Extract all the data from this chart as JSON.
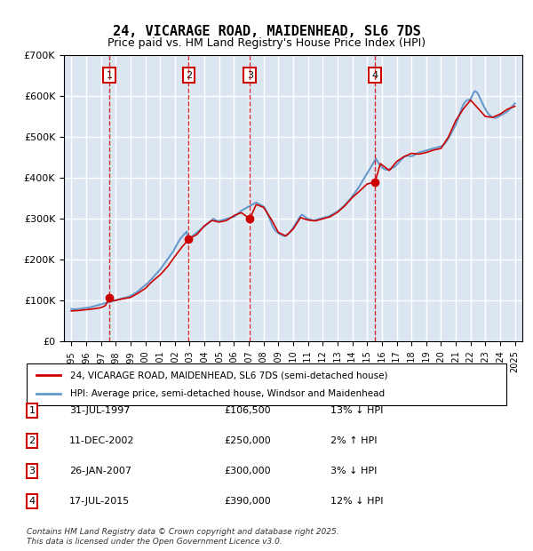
{
  "title": "24, VICARAGE ROAD, MAIDENHEAD, SL6 7DS",
  "subtitle": "Price paid vs. HM Land Registry's House Price Index (HPI)",
  "legend_label_red": "24, VICARAGE ROAD, MAIDENHEAD, SL6 7DS (semi-detached house)",
  "legend_label_blue": "HPI: Average price, semi-detached house, Windsor and Maidenhead",
  "footer": "Contains HM Land Registry data © Crown copyright and database right 2025.\nThis data is licensed under the Open Government Licence v3.0.",
  "transactions": [
    {
      "num": 1,
      "date": "31-JUL-1997",
      "price": "£106,500",
      "hpi": "13% ↓ HPI",
      "year": 1997.58
    },
    {
      "num": 2,
      "date": "11-DEC-2002",
      "price": "£250,000",
      "hpi": "2% ↑ HPI",
      "year": 2002.94
    },
    {
      "num": 3,
      "date": "26-JAN-2007",
      "price": "£300,000",
      "hpi": "3% ↓ HPI",
      "year": 2007.07
    },
    {
      "num": 4,
      "date": "17-JUL-2015",
      "price": "£390,000",
      "hpi": "12% ↓ HPI",
      "year": 2015.54
    }
  ],
  "transaction_prices": [
    106500,
    250000,
    300000,
    390000
  ],
  "ylim": [
    0,
    700000
  ],
  "xlim_start": 1994.5,
  "xlim_end": 2025.5,
  "background_color": "#dce6f1",
  "plot_bg_color": "#dce6f1",
  "red_color": "#cc0000",
  "blue_color": "#6699cc",
  "grid_color": "#ffffff",
  "hpi_data": {
    "years": [
      1995.0,
      1995.1,
      1995.2,
      1995.3,
      1995.4,
      1995.5,
      1995.6,
      1995.7,
      1995.8,
      1995.9,
      1996.0,
      1996.1,
      1996.2,
      1996.3,
      1996.4,
      1996.5,
      1996.6,
      1996.7,
      1996.8,
      1996.9,
      1997.0,
      1997.1,
      1997.2,
      1997.3,
      1997.4,
      1997.5,
      1997.6,
      1997.7,
      1997.8,
      1997.9,
      1998.0,
      1998.1,
      1998.2,
      1998.3,
      1998.4,
      1998.5,
      1998.6,
      1998.7,
      1998.8,
      1998.9,
      1999.0,
      1999.1,
      1999.2,
      1999.3,
      1999.4,
      1999.5,
      1999.6,
      1999.7,
      1999.8,
      1999.9,
      2000.0,
      2000.1,
      2000.2,
      2000.3,
      2000.4,
      2000.5,
      2000.6,
      2000.7,
      2000.8,
      2000.9,
      2001.0,
      2001.1,
      2001.2,
      2001.3,
      2001.4,
      2001.5,
      2001.6,
      2001.7,
      2001.8,
      2001.9,
      2002.0,
      2002.1,
      2002.2,
      2002.3,
      2002.4,
      2002.5,
      2002.6,
      2002.7,
      2002.8,
      2002.9,
      2003.0,
      2003.1,
      2003.2,
      2003.3,
      2003.4,
      2003.5,
      2003.6,
      2003.7,
      2003.8,
      2003.9,
      2004.0,
      2004.1,
      2004.2,
      2004.3,
      2004.4,
      2004.5,
      2004.6,
      2004.7,
      2004.8,
      2004.9,
      2005.0,
      2005.1,
      2005.2,
      2005.3,
      2005.4,
      2005.5,
      2005.6,
      2005.7,
      2005.8,
      2005.9,
      2006.0,
      2006.1,
      2006.2,
      2006.3,
      2006.4,
      2006.5,
      2006.6,
      2006.7,
      2006.8,
      2006.9,
      2007.0,
      2007.1,
      2007.2,
      2007.3,
      2007.4,
      2007.5,
      2007.6,
      2007.7,
      2007.8,
      2007.9,
      2008.0,
      2008.1,
      2008.2,
      2008.3,
      2008.4,
      2008.5,
      2008.6,
      2008.7,
      2008.8,
      2008.9,
      2009.0,
      2009.1,
      2009.2,
      2009.3,
      2009.4,
      2009.5,
      2009.6,
      2009.7,
      2009.8,
      2009.9,
      2010.0,
      2010.1,
      2010.2,
      2010.3,
      2010.4,
      2010.5,
      2010.6,
      2010.7,
      2010.8,
      2010.9,
      2011.0,
      2011.1,
      2011.2,
      2011.3,
      2011.4,
      2011.5,
      2011.6,
      2011.7,
      2011.8,
      2011.9,
      2012.0,
      2012.1,
      2012.2,
      2012.3,
      2012.4,
      2012.5,
      2012.6,
      2012.7,
      2012.8,
      2012.9,
      2013.0,
      2013.1,
      2013.2,
      2013.3,
      2013.4,
      2013.5,
      2013.6,
      2013.7,
      2013.8,
      2013.9,
      2014.0,
      2014.1,
      2014.2,
      2014.3,
      2014.4,
      2014.5,
      2014.6,
      2014.7,
      2014.8,
      2014.9,
      2015.0,
      2015.1,
      2015.2,
      2015.3,
      2015.4,
      2015.5,
      2015.6,
      2015.7,
      2015.8,
      2015.9,
      2016.0,
      2016.1,
      2016.2,
      2016.3,
      2016.4,
      2016.5,
      2016.6,
      2016.7,
      2016.8,
      2016.9,
      2017.0,
      2017.1,
      2017.2,
      2017.3,
      2017.4,
      2017.5,
      2017.6,
      2017.7,
      2017.8,
      2017.9,
      2018.0,
      2018.1,
      2018.2,
      2018.3,
      2018.4,
      2018.5,
      2018.6,
      2018.7,
      2018.8,
      2018.9,
      2019.0,
      2019.1,
      2019.2,
      2019.3,
      2019.4,
      2019.5,
      2019.6,
      2019.7,
      2019.8,
      2019.9,
      2020.0,
      2020.1,
      2020.2,
      2020.3,
      2020.4,
      2020.5,
      2020.6,
      2020.7,
      2020.8,
      2020.9,
      2021.0,
      2021.1,
      2021.2,
      2021.3,
      2021.4,
      2021.5,
      2021.6,
      2021.7,
      2021.8,
      2021.9,
      2022.0,
      2022.1,
      2022.2,
      2022.3,
      2022.4,
      2022.5,
      2022.6,
      2022.7,
      2022.8,
      2022.9,
      2023.0,
      2023.1,
      2023.2,
      2023.3,
      2023.4,
      2023.5,
      2023.6,
      2023.7,
      2023.8,
      2023.9,
      2024.0,
      2024.1,
      2024.2,
      2024.3,
      2024.4,
      2024.5,
      2024.6,
      2024.7,
      2024.8,
      2024.9,
      2025.0
    ],
    "values": [
      80000,
      79500,
      79000,
      79200,
      79500,
      80000,
      80500,
      81000,
      81500,
      82000,
      82500,
      83000,
      83500,
      84000,
      85000,
      86000,
      87000,
      88000,
      89000,
      90000,
      91000,
      92000,
      93000,
      94000,
      95000,
      96000,
      97000,
      98000,
      99000,
      100000,
      101000,
      102000,
      103000,
      104000,
      105000,
      106000,
      107000,
      108000,
      109000,
      110000,
      112000,
      114000,
      116000,
      118000,
      120000,
      123000,
      126000,
      129000,
      132000,
      135000,
      138000,
      141000,
      144000,
      148000,
      152000,
      156000,
      160000,
      164000,
      168000,
      172000,
      176000,
      181000,
      186000,
      191000,
      196000,
      201000,
      206000,
      211000,
      216000,
      221000,
      228000,
      235000,
      241000,
      247000,
      253000,
      257000,
      261000,
      265000,
      269000,
      245000,
      250000,
      255000,
      258000,
      261000,
      264000,
      267000,
      270000,
      273000,
      276000,
      279000,
      282000,
      285000,
      288000,
      291000,
      294000,
      297000,
      300000,
      298000,
      296000,
      295000,
      295000,
      296000,
      297000,
      298000,
      299000,
      300000,
      301000,
      302000,
      303000,
      304000,
      305000,
      308000,
      311000,
      314000,
      317000,
      320000,
      322000,
      324000,
      326000,
      328000,
      330000,
      332000,
      334000,
      336000,
      338000,
      340000,
      338000,
      336000,
      334000,
      332000,
      330000,
      325000,
      318000,
      310000,
      301000,
      292000,
      283000,
      276000,
      271000,
      268000,
      265000,
      263000,
      261000,
      259000,
      258000,
      259000,
      261000,
      264000,
      268000,
      273000,
      278000,
      284000,
      290000,
      296000,
      302000,
      307000,
      310000,
      308000,
      305000,
      302000,
      300000,
      299000,
      298000,
      297000,
      296000,
      297000,
      298000,
      299000,
      300000,
      301000,
      302000,
      303000,
      304000,
      305000,
      306000,
      308000,
      310000,
      312000,
      314000,
      316000,
      318000,
      321000,
      324000,
      327000,
      330000,
      334000,
      338000,
      342000,
      346000,
      350000,
      355000,
      360000,
      365000,
      370000,
      375000,
      381000,
      387000,
      393000,
      399000,
      405000,
      411000,
      417000,
      423000,
      429000,
      435000,
      441000,
      447000,
      441000,
      435000,
      430000,
      426000,
      423000,
      421000,
      420000,
      420000,
      421000,
      422000,
      424000,
      426000,
      428000,
      432000,
      436000,
      440000,
      444000,
      448000,
      451000,
      453000,
      454000,
      454000,
      453000,
      453000,
      454000,
      456000,
      458000,
      460000,
      462000,
      463000,
      464000,
      465000,
      466000,
      467000,
      468000,
      469000,
      470000,
      471000,
      472000,
      473000,
      474000,
      475000,
      476000,
      477000,
      479000,
      482000,
      486000,
      491000,
      497000,
      503000,
      510000,
      517000,
      523000,
      530000,
      540000,
      550000,
      560000,
      570000,
      578000,
      584000,
      588000,
      590000,
      591000,
      592000,
      600000,
      608000,
      612000,
      610000,
      605000,
      598000,
      590000,
      582000,
      575000,
      568000,
      562000,
      557000,
      553000,
      550000,
      548000,
      547000,
      547000,
      548000,
      550000,
      552000,
      554000,
      556000,
      558000,
      560000,
      563000,
      566000,
      570000,
      574000,
      578000,
      582000
    ]
  },
  "red_line_data": {
    "years": [
      1995.0,
      1995.5,
      1996.0,
      1996.5,
      1997.0,
      1997.3,
      1997.58,
      1997.9,
      1998.5,
      1999.0,
      1999.5,
      2000.0,
      2000.5,
      2001.0,
      2001.5,
      2002.0,
      2002.5,
      2002.94,
      2003.0,
      2003.5,
      2004.0,
      2004.5,
      2005.0,
      2005.5,
      2006.0,
      2006.5,
      2007.07,
      2007.5,
      2008.0,
      2008.5,
      2009.0,
      2009.5,
      2010.0,
      2010.5,
      2011.0,
      2011.5,
      2012.0,
      2012.5,
      2013.0,
      2013.5,
      2014.0,
      2014.5,
      2015.0,
      2015.54,
      2015.9,
      2016.5,
      2017.0,
      2017.5,
      2018.0,
      2018.5,
      2019.0,
      2019.5,
      2020.0,
      2020.5,
      2021.0,
      2021.5,
      2022.0,
      2022.5,
      2023.0,
      2023.5,
      2024.0,
      2024.5,
      2025.0
    ],
    "values": [
      75000,
      76000,
      78000,
      80000,
      83000,
      88000,
      106500,
      100000,
      105000,
      108000,
      118000,
      130000,
      148000,
      163000,
      183000,
      208000,
      232000,
      250000,
      252000,
      262000,
      283000,
      296000,
      292000,
      296000,
      308000,
      315000,
      300000,
      335000,
      328000,
      300000,
      267000,
      258000,
      275000,
      303000,
      297000,
      295000,
      300000,
      305000,
      316000,
      332000,
      352000,
      368000,
      385000,
      390000,
      435000,
      418000,
      440000,
      452000,
      460000,
      458000,
      462000,
      468000,
      472000,
      500000,
      540000,
      568000,
      590000,
      570000,
      550000,
      548000,
      556000,
      568000,
      575000
    ]
  }
}
